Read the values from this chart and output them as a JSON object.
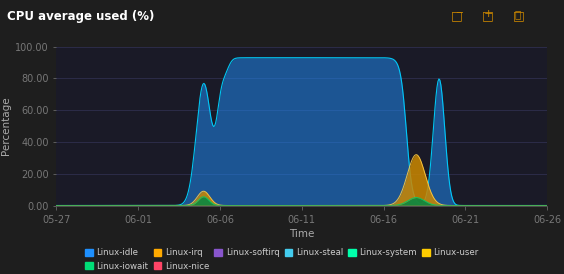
{
  "title": "CPU average used (%)",
  "xlabel": "Time",
  "ylabel": "Percentage",
  "bg_color": "#1e1e1e",
  "plot_bg_color": "#1a1a27",
  "grid_color": "#333355",
  "ylim": [
    0,
    100
  ],
  "yticks": [
    0.0,
    20.0,
    40.0,
    60.0,
    80.0,
    100.0
  ],
  "xtick_labels": [
    "05-27",
    "06-01",
    "06-06",
    "06-11",
    "06-16",
    "06-21",
    "06-26"
  ],
  "idle_color": "#1e90ff",
  "idle_edge_color": "#00cfff",
  "irq_color": "#cc8800",
  "iowait_color": "#008844",
  "iowait_edge_color": "#00cc66",
  "legend_entries": [
    {
      "label": "Linux-idle",
      "color": "#1e90ff"
    },
    {
      "label": "Linux-iowait",
      "color": "#00dd77"
    },
    {
      "label": "Linux-irq",
      "color": "#ffaa00"
    },
    {
      "label": "Linux-nice",
      "color": "#ff4466"
    },
    {
      "label": "Linux-softirq",
      "color": "#8855cc"
    },
    {
      "label": "Linux-steal",
      "color": "#44ccee"
    },
    {
      "label": "Linux-system",
      "color": "#00ffaa"
    },
    {
      "label": "Linux-user",
      "color": "#ffcc00"
    }
  ]
}
